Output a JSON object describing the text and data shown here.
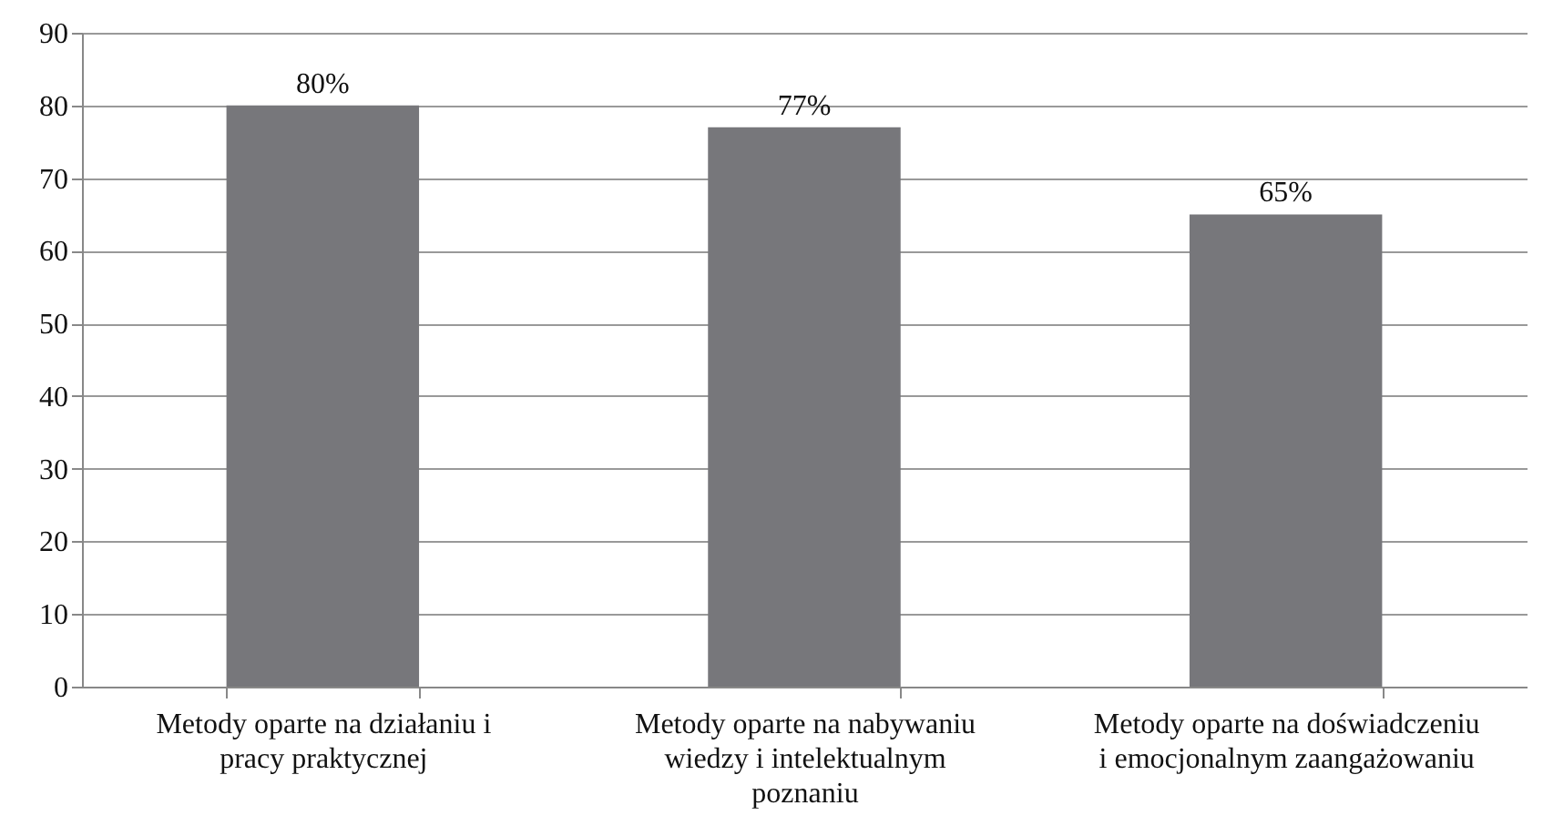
{
  "chart_data": {
    "type": "bar",
    "categories": [
      "Metody oparte na działaniu i pracy praktycznej",
      "Metody oparte na nabywaniu wiedzy i intelektualnym poznaniu",
      "Metody oparte na doświadczeniu i emocjonalnym zaangażowaniu"
    ],
    "values": [
      80,
      77,
      65
    ],
    "value_labels": [
      "80%",
      "77%",
      "65%"
    ],
    "color": "#77777b",
    "ylim": [
      0,
      90
    ],
    "yticks": [
      0,
      10,
      20,
      30,
      40,
      50,
      60,
      70,
      80,
      90
    ],
    "grid": "y"
  }
}
